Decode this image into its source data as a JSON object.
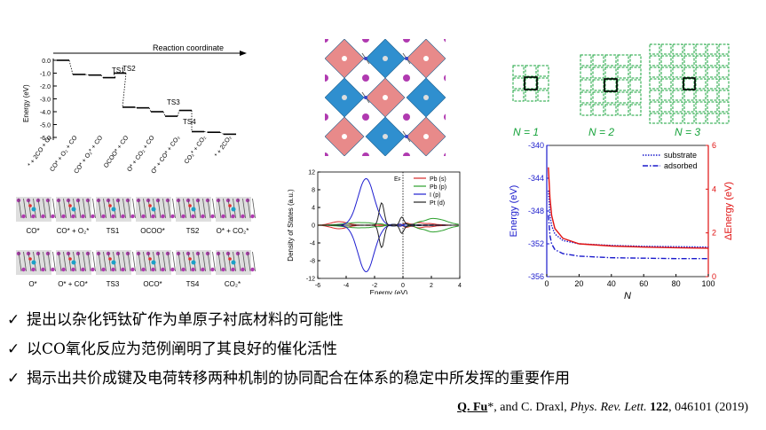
{
  "reaction_panel": {
    "header": "Reaction coordinate",
    "y_axis_label": "Energy (eV)",
    "y_ticks": [
      "0.0",
      "-1.0",
      "-2.0",
      "-3.0",
      "-4.0",
      "-5.0",
      "-6.0"
    ],
    "ts_labels": [
      "TS1",
      "TS2",
      "TS3",
      "TS4"
    ],
    "states": [
      "* + 2CO + O₂",
      "CO* + O₂ + CO",
      "CO* + O₂* + CO",
      "OCOO* + CO",
      "O* + CO₂ + CO",
      "O* + CO* + CO₂",
      "CO₂* + CO₂",
      "* + 2CO₂"
    ],
    "structure_labels_row1": [
      "CO*",
      "CO* + O₂*",
      "TS1",
      "OCOO*",
      "TS2",
      "O* + CO₂*"
    ],
    "structure_labels_row2": [
      "O*",
      "O* + CO*",
      "TS3",
      "OCO*",
      "TS4",
      "CO₂*"
    ]
  },
  "chart_data": [
    {
      "type": "line",
      "title": "",
      "xlabel": "",
      "ylabel": "Energy (eV)",
      "ylim": [
        -6.4,
        0.3
      ],
      "y_ticks": [
        0.0,
        -1.0,
        -2.0,
        -3.0,
        -4.0,
        -5.0,
        -6.0
      ],
      "series": [
        {
          "name": "",
          "x": [
            0,
            1,
            2,
            3,
            4,
            5,
            6,
            7,
            8,
            9,
            10,
            11,
            12
          ],
          "values": [
            0.0,
            -1.1,
            -1.15,
            -1.35,
            -1.0,
            -3.65,
            -3.7,
            -4.0,
            -4.35,
            -3.9,
            -5.55,
            -5.6,
            -5.75
          ]
        }
      ]
    },
    {
      "type": "line",
      "title": "",
      "xlabel": "Energy (eV)",
      "ylabel": "Density of States (a.u.)",
      "xlim": [
        -6,
        4
      ],
      "ylim": [
        -12,
        12
      ],
      "x_ticks": [
        -6,
        -4,
        -2,
        0,
        2,
        4
      ],
      "y_ticks": [
        -12,
        -8,
        -4,
        0,
        4,
        8,
        12
      ],
      "annotation": "E_F",
      "series": [
        {
          "name": "Pb (s)",
          "color": "#d62728"
        },
        {
          "name": "Pb (p)",
          "color": "#2ca02c"
        },
        {
          "name": "I (p)",
          "color": "#1f1fd0"
        },
        {
          "name": "Pt (d)",
          "color": "#222222"
        }
      ]
    },
    {
      "type": "line",
      "title": "",
      "xlabel": "N",
      "ylabel": "Energy (eV)",
      "y2label": "ΔEnergy (eV)",
      "xlim": [
        0,
        100
      ],
      "ylim": [
        -356,
        -340
      ],
      "y2lim": [
        0,
        6
      ],
      "x_ticks": [
        0,
        20,
        40,
        60,
        80,
        100
      ],
      "y_ticks": [
        -340,
        -344,
        -348,
        -352,
        -356
      ],
      "y2_ticks": [
        0,
        2,
        4,
        6
      ],
      "legend_position": "top-right",
      "series": [
        {
          "name": "substrate",
          "x": [
            1,
            2,
            3,
            5,
            10,
            20,
            40,
            60,
            80,
            100
          ],
          "values": [
            -345.5,
            -348.5,
            -349.8,
            -350.8,
            -351.6,
            -352.0,
            -352.2,
            -352.3,
            -352.35,
            -352.4
          ],
          "color": "#1a1acc",
          "style": "dotted"
        },
        {
          "name": "adsorbed",
          "x": [
            1,
            2,
            3,
            5,
            10,
            20,
            40,
            60,
            80,
            100
          ],
          "values": [
            -348.5,
            -351.0,
            -352.0,
            -352.7,
            -353.2,
            -353.5,
            -353.7,
            -353.75,
            -353.8,
            -353.8
          ],
          "color": "#1a1acc",
          "style": "dashdot"
        },
        {
          "name": "",
          "x": [
            1,
            2,
            3,
            5,
            10,
            20,
            40,
            60,
            80,
            100
          ],
          "values": [
            5.0,
            3.6,
            2.8,
            2.2,
            1.75,
            1.5,
            1.4,
            1.35,
            1.32,
            1.3
          ],
          "color": "#e01010",
          "axis": "right"
        }
      ]
    }
  ],
  "grids": [
    "N = 1",
    "N = 2",
    "N = 3"
  ],
  "bullets": [
    "提出以杂化钙钛矿作为单原子衬底材料的可能性",
    "以CO氧化反应为范例阐明了其良好的催化活性",
    "揭示出共价成键及电荷转移两种机制的协同配合在体系的稳定中所发挥的重要作用"
  ],
  "check_mark": "✓",
  "citation": {
    "author": "Q. Fu",
    "rest_authors": "*, and C. Draxl, ",
    "journal": "Phys. Rev. Lett.",
    "volume": "122",
    "pages_year": ", 046101 (2019)"
  },
  "colors": {
    "octahedra": "#2f8fcf",
    "pt_center": "#e88a8a",
    "iodine": "#b03ab0",
    "grid_green": "#17a33b"
  }
}
